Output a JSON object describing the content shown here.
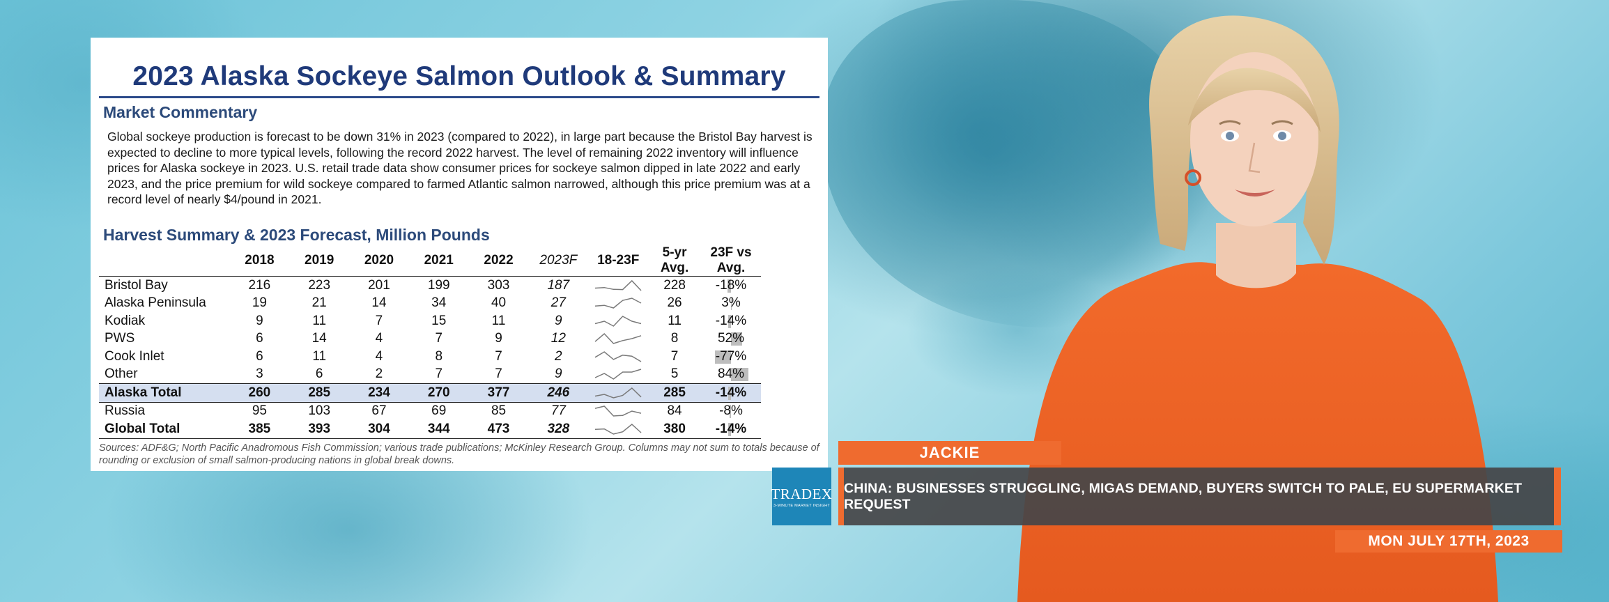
{
  "slide": {
    "title": "2023 Alaska Sockeye Salmon Outlook & Summary",
    "market_heading": "Market Commentary",
    "commentary": "Global sockeye production is forecast to be down 31% in 2023 (compared to 2022), in large part because the Bristol Bay harvest is expected to decline to more typical levels, following the record 2022 harvest. The level of remaining 2022 inventory will influence prices for Alaska sockeye in 2023. U.S. retail trade data show consumer prices for sockeye salmon dipped in late 2022 and early 2023, and the price premium for wild sockeye compared to farmed Atlantic salmon narrowed, although this price premium was at a record level of nearly $4/pound in 2021.",
    "harvest_heading": "Harvest Summary & 2023 Forecast, Million Pounds",
    "sources": "Sources: ADF&G; North Pacific Anadromous Fish Commission; various trade publications; McKinley Research Group. Columns may not sum to totals because of rounding or exclusion of small salmon-producing nations in global break downs."
  },
  "chart_data": {
    "type": "table",
    "title": "Harvest Summary & 2023 Forecast, Million Pounds",
    "columns": [
      "",
      "2018",
      "2019",
      "2020",
      "2021",
      "2022",
      "2023F",
      "18-23F",
      "5-yr Avg.",
      "23F vs Avg."
    ],
    "rows": [
      {
        "region": "Bristol Bay",
        "values": [
          216,
          223,
          201,
          199,
          303,
          187
        ],
        "avg": 228,
        "vs_avg": "-18%",
        "vs_avg_num": -18
      },
      {
        "region": "Alaska Peninsula",
        "values": [
          19,
          21,
          14,
          34,
          40,
          27
        ],
        "avg": 26,
        "vs_avg": "3%",
        "vs_avg_num": 3
      },
      {
        "region": "Kodiak",
        "values": [
          9,
          11,
          7,
          15,
          11,
          9
        ],
        "avg": 11,
        "vs_avg": "-14%",
        "vs_avg_num": -14
      },
      {
        "region": "PWS",
        "values": [
          6,
          14,
          4,
          7,
          9,
          12
        ],
        "avg": 8,
        "vs_avg": "52%",
        "vs_avg_num": 52
      },
      {
        "region": "Cook Inlet",
        "values": [
          6,
          11,
          4,
          8,
          7,
          2
        ],
        "avg": 7,
        "vs_avg": "-77%",
        "vs_avg_num": -77
      },
      {
        "region": "Other",
        "values": [
          3,
          6,
          2,
          7,
          7,
          9
        ],
        "avg": 5,
        "vs_avg": "84%",
        "vs_avg_num": 84
      },
      {
        "region": "Alaska Total",
        "values": [
          260,
          285,
          234,
          270,
          377,
          246
        ],
        "avg": 285,
        "vs_avg": "-14%",
        "vs_avg_num": -14,
        "style": "total"
      },
      {
        "region": "Russia",
        "values": [
          95,
          103,
          67,
          69,
          85,
          77
        ],
        "avg": 84,
        "vs_avg": "-8%",
        "vs_avg_num": -8
      },
      {
        "region": "Global Total",
        "values": [
          385,
          393,
          304,
          344,
          473,
          328
        ],
        "avg": 380,
        "vs_avg": "-14%",
        "vs_avg_num": -14,
        "style": "global"
      }
    ]
  },
  "lower_third": {
    "presenter_name": "JACKIE",
    "logo_text": "TRADEX",
    "logo_subtext": "3-MINUTE MARKET INSIGHT",
    "headline": "CHINA: BUSINESSES STRUGGLING, MIGAS DEMAND, BUYERS SWITCH TO PALE, EU SUPERMARKET REQUEST",
    "date": "MON JULY 17TH, 2023"
  },
  "colors": {
    "accent_orange": "#ef6b2f",
    "title_blue": "#1f3a7a",
    "logo_blue": "#1e86b8"
  }
}
